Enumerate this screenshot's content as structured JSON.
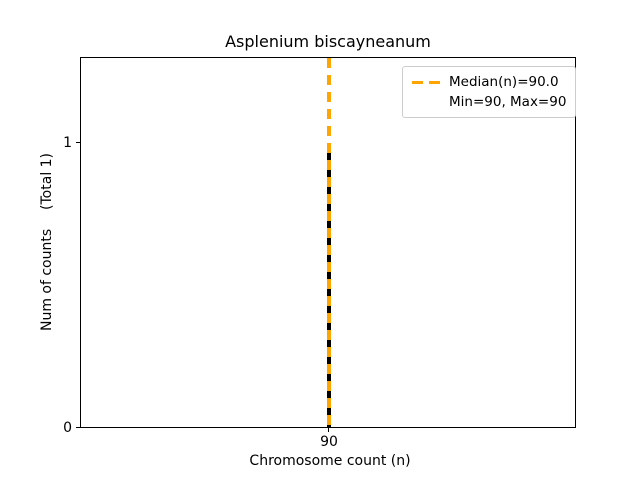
{
  "chart_data": {
    "type": "bar",
    "title": "Asplenium biscayneanum",
    "xlabel": "Chromosome count (n)",
    "ylabel": "Num of counts",
    "ylabel_annotation": "(Total 1)",
    "categories": [
      90
    ],
    "values": [
      1
    ],
    "bar_color": "#000000",
    "xticks": [
      "90"
    ],
    "yticks": [
      "0",
      "1"
    ],
    "ylim": [
      0,
      1.3
    ],
    "grid": false,
    "median_line": {
      "value": 90.0,
      "color": "#FFA500",
      "linestyle": "dashed"
    },
    "stats": {
      "median": 90.0,
      "min": 90,
      "max": 90,
      "total_counts": 1
    },
    "legend": {
      "position": "upper right",
      "entries": [
        {
          "label": "Median(n)=90.0",
          "handle": "dashed-line",
          "color": "#FFA500"
        },
        {
          "label": "Min=90, Max=90",
          "handle": "none"
        }
      ]
    }
  }
}
